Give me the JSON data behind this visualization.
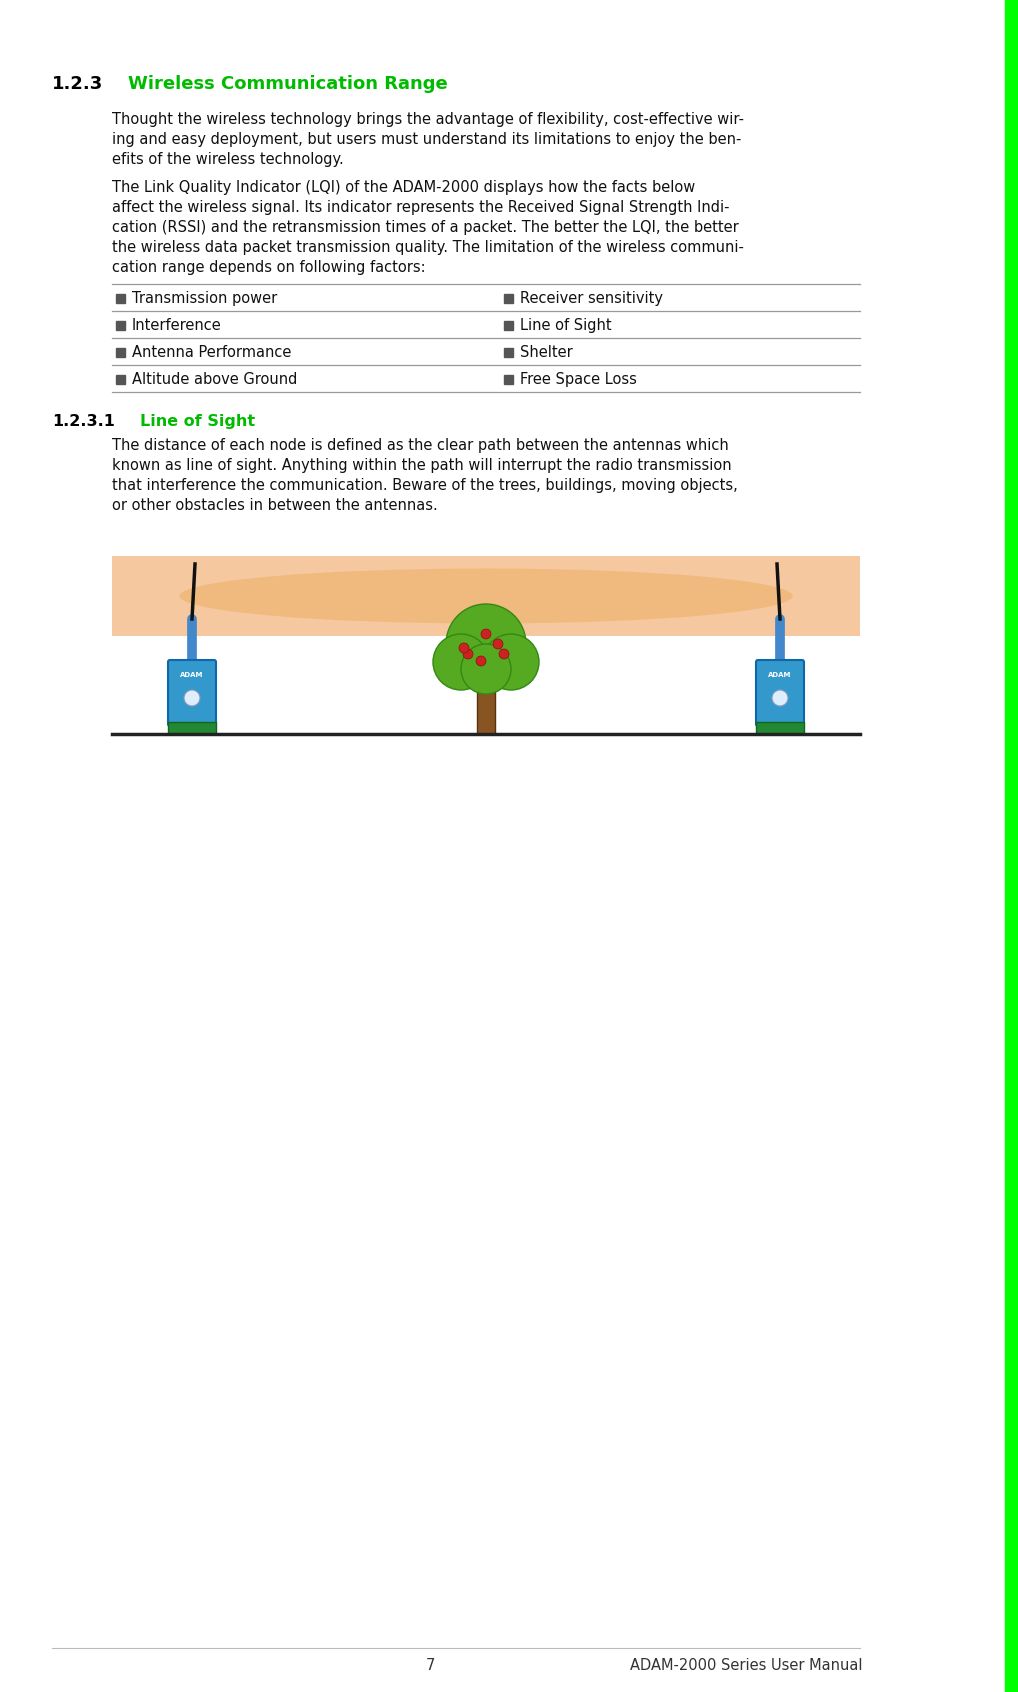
{
  "bg_color": "#ffffff",
  "green_bar_color": "#00ff00",
  "section_num_color": "#000000",
  "section_title_color": "#00bb00",
  "body_text_color": "#111111",
  "table_line_color": "#999999",
  "bullet_color": "#555555",
  "section_123": "1.2.3",
  "section_123_title": "Wireless Communication Range",
  "para1_lines": [
    "Thought the wireless technology brings the advantage of flexibility, cost-effective wir-",
    "ing and easy deployment, but users must understand its limitations to enjoy the ben-",
    "efits of the wireless technology."
  ],
  "para2_lines": [
    "The Link Quality Indicator (LQI) of the ADAM-2000 displays how the facts below",
    "affect the wireless signal. Its indicator represents the Received Signal Strength Indi-",
    "cation (RSSI) and the retransmission times of a packet. The better the LQI, the better",
    "the wireless data packet transmission quality. The limitation of the wireless communi-",
    "cation range depends on following factors:"
  ],
  "table_rows": [
    [
      "Transmission power",
      "Receiver sensitivity"
    ],
    [
      "Interference",
      "Line of Sight"
    ],
    [
      "Antenna Performance",
      "Shelter"
    ],
    [
      "Altitude above Ground",
      "Free Space Loss"
    ]
  ],
  "section_1231": "1.2.3.1",
  "section_1231_title": "Line of Sight",
  "para3_lines": [
    "The distance of each node is defined as the clear path between the antennas which",
    "known as line of sight. Anything within the path will interrupt the radio transmission",
    "that interference the communication. Beware of the trees, buildings, moving objects,",
    "or other obstacles in between the antennas."
  ],
  "footer_page": "7",
  "footer_title": "ADAM-2000 Series User Manual",
  "signal_bg_color": "#f5c8a0",
  "signal_ellipse_color": "#f0b87a",
  "device_blue": "#3399cc",
  "device_dark_blue": "#1166aa",
  "device_green_base": "#228833",
  "tree_green": "#55aa22",
  "tree_dark_green": "#338811",
  "tree_brown": "#885522",
  "apple_red": "#cc2222",
  "ground_color": "#222222",
  "pole_color": "#4488cc"
}
